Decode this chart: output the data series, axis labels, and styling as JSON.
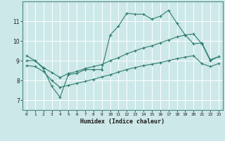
{
  "xlabel": "Humidex (Indice chaleur)",
  "ylabel": "",
  "bg_color": "#cde8e8",
  "line_color": "#2e7d6e",
  "grid_color": "#ffffff",
  "xlim": [
    -0.5,
    23.5
  ],
  "ylim": [
    6.5,
    12.0
  ],
  "yticks": [
    7,
    8,
    9,
    10,
    11
  ],
  "xticks": [
    0,
    1,
    2,
    3,
    4,
    5,
    6,
    7,
    8,
    9,
    10,
    11,
    12,
    13,
    14,
    15,
    16,
    17,
    18,
    19,
    20,
    21,
    22,
    23
  ],
  "line1_x": [
    0,
    1,
    2,
    3,
    4,
    5,
    6,
    7,
    8,
    9,
    10,
    11,
    12,
    13,
    14,
    15,
    16,
    17,
    18,
    19,
    20,
    21,
    22,
    23
  ],
  "line1_y": [
    9.25,
    9.0,
    8.6,
    7.7,
    7.15,
    8.3,
    8.35,
    8.55,
    8.55,
    8.55,
    10.3,
    10.75,
    11.4,
    11.35,
    11.35,
    11.1,
    11.25,
    11.55,
    10.9,
    10.3,
    9.85,
    9.9,
    9.05,
    9.2
  ],
  "line2_x": [
    0,
    1,
    2,
    3,
    4,
    5,
    6,
    7,
    8,
    9,
    10,
    11,
    12,
    13,
    14,
    15,
    16,
    17,
    18,
    19,
    20,
    21,
    22,
    23
  ],
  "line2_y": [
    9.0,
    9.0,
    8.65,
    8.4,
    8.15,
    8.35,
    8.45,
    8.6,
    8.7,
    8.8,
    9.0,
    9.15,
    9.35,
    9.5,
    9.65,
    9.75,
    9.9,
    10.05,
    10.2,
    10.3,
    10.35,
    9.85,
    9.0,
    9.2
  ],
  "line3_x": [
    0,
    1,
    2,
    3,
    4,
    5,
    6,
    7,
    8,
    9,
    10,
    11,
    12,
    13,
    14,
    15,
    16,
    17,
    18,
    19,
    20,
    21,
    22,
    23
  ],
  "line3_y": [
    8.75,
    8.7,
    8.45,
    8.0,
    7.65,
    7.75,
    7.85,
    7.95,
    8.05,
    8.18,
    8.28,
    8.42,
    8.55,
    8.65,
    8.75,
    8.82,
    8.9,
    9.0,
    9.1,
    9.18,
    9.25,
    8.85,
    8.7,
    8.85
  ]
}
